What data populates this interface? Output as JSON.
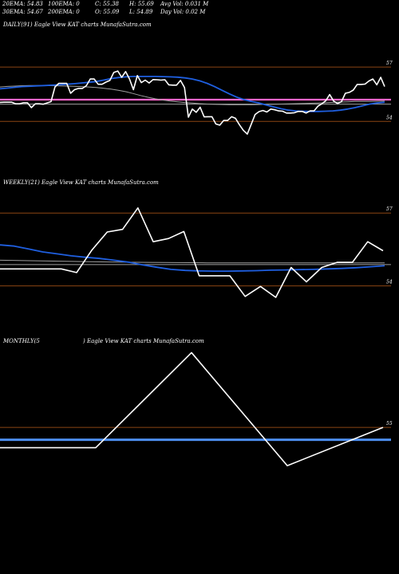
{
  "header": {
    "ema20": "20EMA: 54.83",
    "ema100": "100EMA: 0",
    "close": "C: 55.38",
    "high": "H: 55.69",
    "avg_vol": "Avg Vol: 0.031 M",
    "ema30": "30EMA: 54.67",
    "ema200": "200EMA: 0",
    "open": "O: 55.09",
    "low": "L: 54.89",
    "day_vol": "Day Vol: 0.02 M"
  },
  "colors": {
    "background": "#000000",
    "price": "#ffffff",
    "ema_fast": "#1f5fe0",
    "ema_slow": "#a0a0a0",
    "pink_ref": "#ff66cc",
    "resistance": "#8b4513",
    "monthly_level": "#4d8ef0"
  },
  "chart_data": [
    {
      "type": "line",
      "title": "DAILY(91) Eagle View KAT charts MunafaSutra.com",
      "y_ticks": [
        "57",
        "54"
      ],
      "ylim": [
        53.0,
        57.4
      ],
      "horizontal_lines": [
        {
          "name": "resistance",
          "value": 57.0
        },
        {
          "name": "pink",
          "value": 55.2
        },
        {
          "name": "gray",
          "value": 54.95
        },
        {
          "name": "support",
          "value": 54.0
        }
      ],
      "series": [
        {
          "role": "price",
          "values": [
            55.05,
            55.06,
            55.06,
            55.06,
            54.97,
            54.97,
            55.03,
            55.03,
            54.76,
            54.97,
            54.97,
            54.95,
            55.02,
            55.09,
            55.9,
            56.1,
            56.1,
            56.1,
            55.55,
            55.75,
            55.82,
            55.82,
            55.97,
            56.34,
            56.34,
            56.05,
            56.05,
            56.17,
            56.26,
            56.7,
            56.78,
            56.43,
            56.75,
            56.34,
            55.75,
            56.53,
            56.14,
            56.28,
            56.12,
            56.31,
            56.3,
            56.28,
            56.3,
            56.02,
            56.0,
            56.0,
            56.26,
            55.87,
            54.23,
            54.68,
            54.5,
            54.78,
            54.25,
            54.26,
            54.26,
            53.86,
            53.79,
            54.05,
            54.05,
            54.26,
            54.17,
            53.82,
            53.51,
            53.3,
            53.84,
            54.38,
            54.54,
            54.6,
            54.52,
            54.68,
            54.64,
            54.58,
            54.56,
            54.46,
            54.46,
            54.48,
            54.55,
            54.55,
            54.46,
            54.58,
            54.58,
            54.84,
            54.97,
            55.14,
            55.48,
            55.12,
            54.99,
            55.09,
            55.55,
            55.6,
            55.73,
            56.04,
            56.04,
            56.06,
            56.23,
            56.34,
            56.02,
            56.43,
            55.92
          ]
        },
        {
          "role": "ema_fast",
          "values": [
            55.8,
            55.84,
            55.88,
            55.92,
            55.94,
            55.96,
            55.98,
            56.0,
            56.02,
            56.05,
            56.08,
            56.12,
            56.16,
            56.2,
            56.28,
            56.36,
            56.42,
            56.46,
            56.48,
            56.48,
            56.48,
            56.48,
            56.47,
            56.46,
            56.44,
            56.4,
            56.34,
            56.24,
            56.1,
            55.92,
            55.72,
            55.52,
            55.34,
            55.2,
            55.1,
            55.02,
            54.9,
            54.8,
            54.7,
            54.62,
            54.58,
            54.56,
            54.55,
            54.55,
            54.56,
            54.58,
            54.62,
            54.68,
            54.76,
            54.86,
            54.96,
            55.02,
            55.06
          ]
        },
        {
          "role": "ema_slow",
          "values": [
            55.9,
            55.93,
            55.95,
            55.97,
            55.98,
            55.98,
            55.98,
            55.97,
            55.96,
            55.95,
            55.94,
            55.92,
            55.9,
            55.87,
            55.83,
            55.78,
            55.72,
            55.64,
            55.54,
            55.43,
            55.33,
            55.25,
            55.18,
            55.12,
            55.08,
            55.04,
            55.01,
            54.98,
            54.96,
            54.94,
            54.93,
            54.92,
            54.92,
            54.92,
            54.92,
            54.93,
            54.94,
            54.95,
            54.96,
            54.97,
            54.98,
            54.99,
            55.0,
            55.01,
            55.03,
            55.05,
            55.07,
            55.08,
            55.1,
            55.1,
            55.1,
            55.11,
            55.12
          ]
        }
      ]
    },
    {
      "type": "line",
      "title": "WEEKLY(21) Eagle View KAT charts MunafaSutra.com",
      "y_ticks": [
        "57",
        "54"
      ],
      "ylim": [
        53.3,
        57.5
      ],
      "horizontal_lines": [
        {
          "name": "resistance",
          "value": 57.0
        },
        {
          "name": "gray",
          "value": 54.88
        },
        {
          "name": "support",
          "value": 54.0
        }
      ],
      "series": [
        {
          "role": "price",
          "values": [
            54.7,
            54.7,
            54.7,
            54.7,
            54.7,
            54.55,
            55.48,
            56.22,
            56.33,
            57.21,
            55.82,
            55.95,
            56.24,
            54.42,
            54.42,
            54.42,
            53.57,
            53.98,
            53.53,
            54.76,
            54.17,
            54.76,
            54.97,
            54.97,
            55.82,
            55.45
          ]
        },
        {
          "role": "ema_fast",
          "values": [
            55.69,
            55.64,
            55.52,
            55.4,
            55.32,
            55.24,
            55.18,
            55.13,
            55.06,
            54.98,
            54.87,
            54.77,
            54.68,
            54.64,
            54.62,
            54.61,
            54.61,
            54.62,
            54.63,
            54.65,
            54.66,
            54.67,
            54.68,
            54.7,
            54.72,
            54.75,
            54.79,
            54.83
          ]
        },
        {
          "role": "ema_slow",
          "values": [
            55.06,
            55.04,
            55.02,
            55.0,
            54.98,
            54.97,
            54.96,
            54.95,
            54.95,
            54.95,
            54.95,
            54.95,
            54.95,
            54.95
          ]
        }
      ]
    },
    {
      "type": "line",
      "title": "MONTHLY(5 ) Eagle View KAT charts MunafaSutra.com",
      "title_left": "MONTHLY(5",
      "title_right": ") Eagle View KAT charts MunafaSutra.com",
      "y_ticks": [
        "55"
      ],
      "ylim": [
        51.6,
        60.0
      ],
      "horizontal_lines": [
        {
          "name": "resistance",
          "value": 55.0
        },
        {
          "name": "monthly_level",
          "value": 54.33
        }
      ],
      "series": [
        {
          "role": "price",
          "values": [
            53.9,
            53.9,
            59.04,
            52.93,
            55.0
          ]
        }
      ]
    }
  ]
}
